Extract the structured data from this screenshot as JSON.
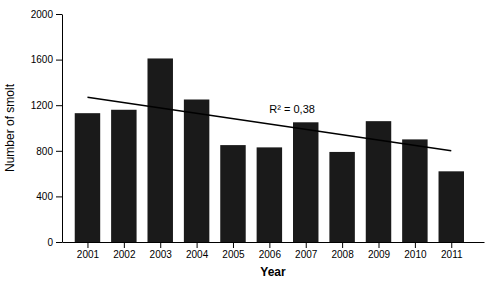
{
  "chart_data": {
    "type": "bar",
    "xlabel": "Year",
    "ylabel": "Number of smolt",
    "x": [
      2001,
      2002,
      2003,
      2004,
      2005,
      2006,
      2007,
      2008,
      2009,
      2010,
      2011
    ],
    "series": [
      {
        "type": "bar",
        "color": "#1a1a1a",
        "values": [
          1130,
          1160,
          1610,
          1250,
          850,
          830,
          1050,
          790,
          1060,
          900,
          620
        ]
      },
      {
        "type": "line",
        "color": "#000000",
        "x": [
          2001,
          2011
        ],
        "values": [
          1270,
          800
        ]
      }
    ],
    "annotation": "R² = 0,38",
    "xlim": [
      2000.3,
      2011.9
    ],
    "xticks": [
      2001,
      2002,
      2003,
      2004,
      2005,
      2006,
      2007,
      2008,
      2009,
      2010,
      2011
    ],
    "ylim": [
      0,
      2000
    ],
    "yticks": [
      0,
      400,
      800,
      1200,
      1600,
      2000
    ]
  }
}
